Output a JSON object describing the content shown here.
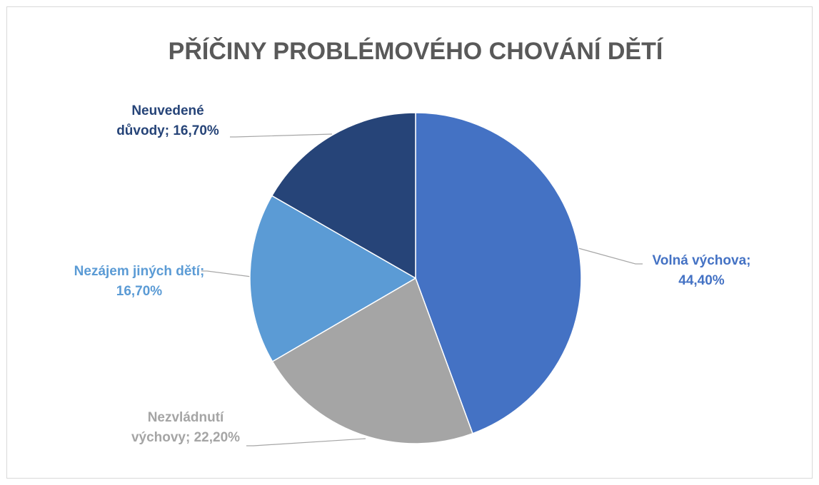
{
  "chart_data": {
    "type": "pie",
    "title": "PŘÍČINY PROBLÉMOVÉHO CHOVÁNÍ DĚTÍ",
    "values": [
      44.4,
      22.2,
      16.7,
      16.7
    ],
    "value_labels": [
      "Volná výchova; 44,40%",
      "Nezvládnutí výchovy; 22,20%",
      "Nezájem jiných dětí; 16,70%",
      "Neuvedené důvody; 16,70%"
    ],
    "colors": [
      "#4472c4",
      "#a5a5a5",
      "#5b9bd5",
      "#264478"
    ]
  }
}
